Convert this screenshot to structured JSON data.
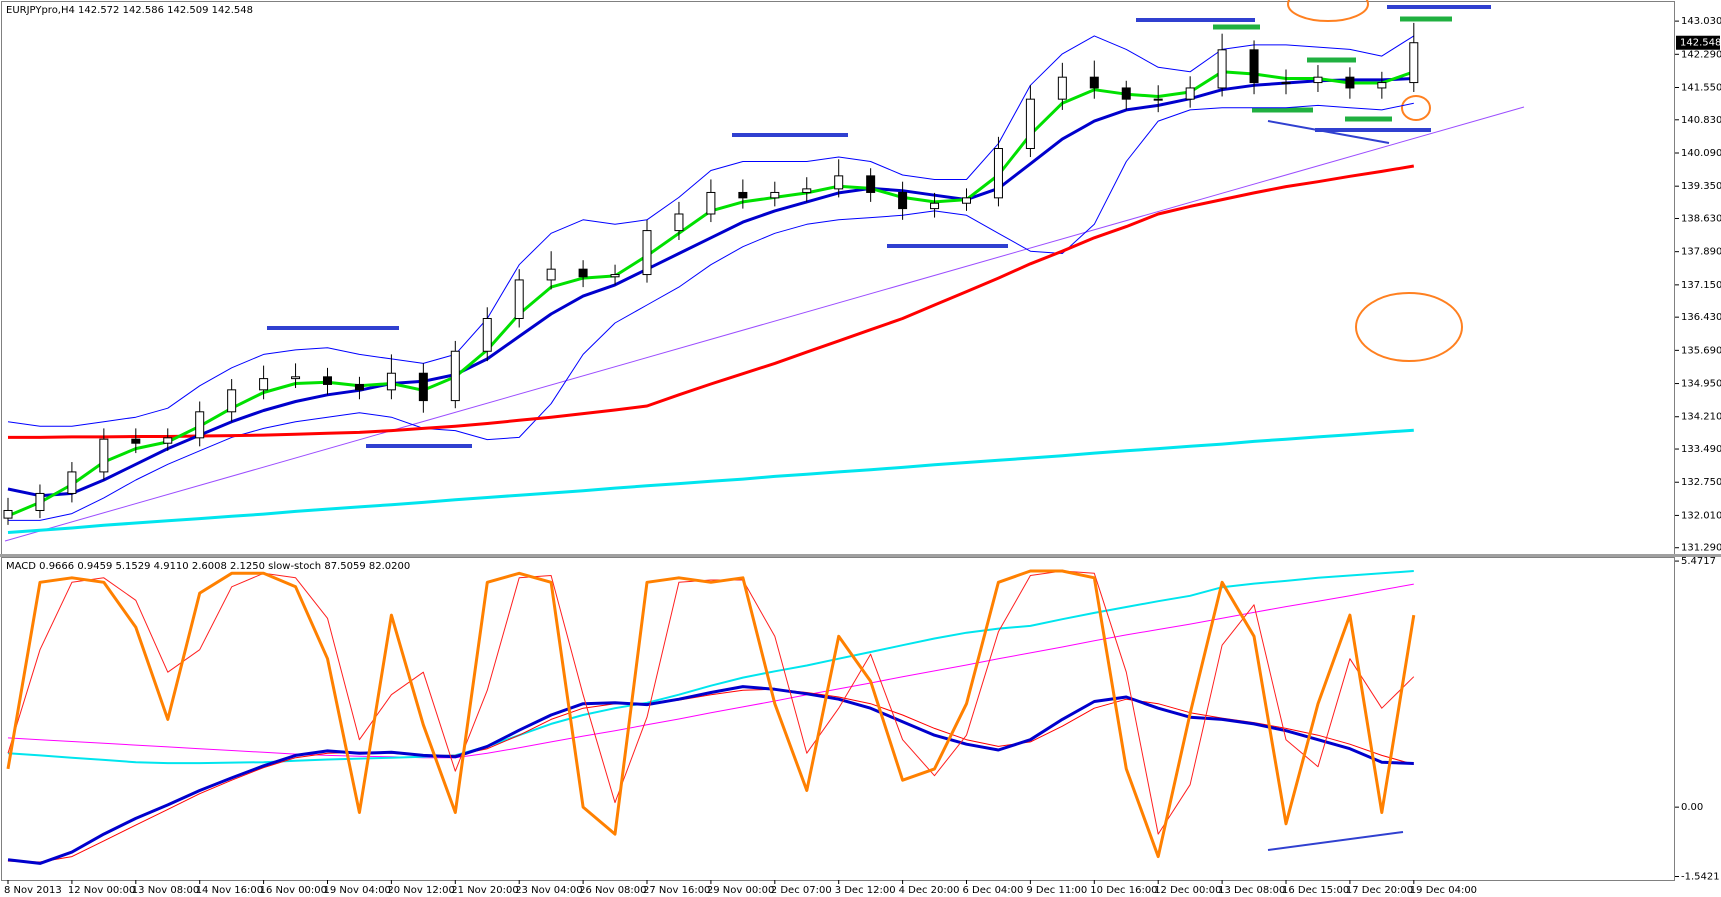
{
  "chart_data": [
    {
      "type": "candlestick",
      "title": "EURJPYpro,H4  142.572 142.586 142.509 142.548",
      "last_price": 142.548,
      "categories": [
        "8 Nov 2013",
        null,
        "12 Nov 00:00",
        null,
        "13 Nov 08:00",
        null,
        "14 Nov 16:00",
        null,
        "16 Nov 00:00",
        null,
        "19 Nov 04:00",
        null,
        "20 Nov 12:00",
        null,
        "21 Nov 20:00",
        null,
        "23 Nov 04:00",
        null,
        "26 Nov 08:00",
        null,
        "27 Nov 16:00",
        null,
        "29 Nov 00:00",
        null,
        "2 Dec 07:00",
        null,
        "3 Dec 12:00",
        null,
        "4 Dec 20:00",
        null,
        "6 Dec 04:00",
        null,
        "9 Dec 11:00",
        null,
        "10 Dec 16:00",
        null,
        "12 Dec 00:00",
        null,
        "13 Dec 08:00",
        null,
        "16 Dec 15:00",
        null,
        "17 Dec 20:00",
        null,
        "19 Dec 04:00"
      ],
      "open": [
        131.95,
        132.12,
        132.5,
        132.98,
        133.71,
        133.62,
        133.74,
        134.32,
        134.81,
        135.06,
        135.1,
        134.93,
        134.81,
        135.18,
        134.57,
        135.67,
        136.4,
        137.26,
        137.5,
        137.33,
        137.38,
        138.36,
        138.73,
        139.21,
        139.09,
        139.21,
        139.29,
        139.58,
        139.21,
        138.85,
        138.97,
        139.09,
        140.19,
        141.29,
        141.78,
        141.54,
        141.29,
        141.29,
        141.54,
        142.39,
        141.66,
        141.66,
        141.78,
        141.54,
        141.66
      ],
      "high": [
        132.4,
        132.7,
        133.2,
        133.95,
        133.95,
        133.95,
        134.55,
        135.05,
        135.35,
        135.4,
        135.3,
        135.1,
        135.6,
        135.4,
        135.9,
        136.65,
        137.5,
        137.9,
        137.7,
        137.6,
        138.6,
        139.0,
        139.5,
        139.5,
        139.45,
        139.55,
        139.95,
        139.75,
        139.45,
        139.2,
        139.3,
        140.45,
        141.6,
        142.1,
        142.15,
        141.7,
        141.6,
        141.8,
        142.75,
        142.6,
        141.95,
        142.05,
        142.0,
        141.9,
        142.99
      ],
      "low": [
        131.8,
        131.95,
        132.3,
        132.8,
        133.4,
        133.45,
        133.55,
        134.1,
        134.6,
        134.85,
        134.7,
        134.6,
        134.6,
        134.3,
        134.4,
        135.45,
        136.2,
        137.05,
        137.1,
        137.15,
        137.2,
        138.15,
        138.55,
        138.85,
        138.9,
        139.0,
        139.1,
        139.0,
        138.6,
        138.65,
        138.8,
        138.9,
        140.0,
        141.05,
        141.3,
        141.05,
        141.0,
        141.1,
        141.35,
        141.4,
        141.4,
        141.45,
        141.3,
        141.3,
        141.45
      ],
      "close": [
        132.12,
        132.5,
        132.98,
        133.71,
        133.62,
        133.74,
        134.32,
        134.81,
        135.06,
        135.1,
        134.93,
        134.81,
        135.18,
        134.57,
        135.67,
        136.4,
        137.26,
        137.5,
        137.33,
        137.38,
        138.36,
        138.73,
        139.21,
        139.09,
        139.21,
        139.29,
        139.58,
        139.21,
        138.85,
        138.97,
        139.09,
        140.19,
        141.29,
        141.78,
        141.54,
        141.29,
        141.29,
        141.54,
        142.39,
        141.66,
        141.66,
        141.78,
        141.54,
        141.66,
        142.548
      ],
      "series": [
        {
          "color": "#0000ff",
          "width": 1,
          "values": [
            134.1,
            134.0,
            134.0,
            134.1,
            134.2,
            134.4,
            134.9,
            135.3,
            135.6,
            135.7,
            135.75,
            135.6,
            135.5,
            135.4,
            135.6,
            136.4,
            137.6,
            138.3,
            138.6,
            138.5,
            138.6,
            139.1,
            139.7,
            139.9,
            139.9,
            139.9,
            140.0,
            139.9,
            139.6,
            139.5,
            139.5,
            140.3,
            141.6,
            142.3,
            142.7,
            142.4,
            142.0,
            141.9,
            142.4,
            142.5,
            142.5,
            142.45,
            142.4,
            142.25,
            142.7
          ]
        },
        {
          "color": "#0000ff",
          "width": 1,
          "values": [
            131.9,
            131.9,
            132.05,
            132.4,
            132.8,
            133.15,
            133.45,
            133.75,
            133.95,
            134.1,
            134.2,
            134.3,
            134.2,
            133.95,
            133.9,
            133.7,
            133.75,
            134.5,
            135.6,
            136.3,
            136.7,
            137.1,
            137.6,
            138.0,
            138.3,
            138.5,
            138.6,
            138.65,
            138.7,
            138.8,
            138.7,
            138.3,
            137.9,
            137.85,
            138.5,
            139.9,
            140.8,
            141.05,
            141.1,
            141.1,
            141.1,
            141.15,
            141.1,
            141.05,
            141.2
          ]
        },
        {
          "color": "#ff0000",
          "width": 3,
          "values": [
            133.75,
            133.75,
            133.76,
            133.76,
            133.77,
            133.77,
            133.78,
            133.79,
            133.8,
            133.82,
            133.84,
            133.86,
            133.9,
            133.95,
            134.0,
            134.06,
            134.13,
            134.2,
            134.28,
            134.36,
            134.45,
            134.7,
            134.94,
            135.17,
            135.4,
            135.65,
            135.9,
            136.15,
            136.4,
            136.7,
            137.0,
            137.3,
            137.62,
            137.9,
            138.2,
            138.45,
            138.73,
            138.9,
            139.05,
            139.2,
            139.34,
            139.45,
            139.57,
            139.68,
            139.8
          ]
        },
        {
          "color": "#00e5ee",
          "width": 3,
          "values": [
            131.63,
            131.68,
            131.73,
            131.79,
            131.84,
            131.89,
            131.94,
            131.99,
            132.04,
            132.1,
            132.15,
            132.2,
            132.25,
            132.3,
            132.36,
            132.41,
            132.46,
            132.51,
            132.56,
            132.62,
            132.67,
            132.72,
            132.77,
            132.82,
            132.88,
            132.93,
            132.98,
            133.03,
            133.08,
            133.14,
            133.19,
            133.24,
            133.29,
            133.34,
            133.4,
            133.45,
            133.5,
            133.55,
            133.6,
            133.66,
            133.71,
            133.76,
            133.81,
            133.86,
            133.91
          ]
        },
        {
          "color": "#0000cc",
          "width": 3,
          "values": [
            132.6,
            132.45,
            132.5,
            132.8,
            133.15,
            133.5,
            133.8,
            134.1,
            134.35,
            134.55,
            134.7,
            134.8,
            134.95,
            135.0,
            135.15,
            135.5,
            136.0,
            136.5,
            136.9,
            137.15,
            137.5,
            137.85,
            138.2,
            138.55,
            138.8,
            139.0,
            139.2,
            139.3,
            139.25,
            139.15,
            139.05,
            139.3,
            139.85,
            140.4,
            140.8,
            141.05,
            141.15,
            141.3,
            141.5,
            141.6,
            141.65,
            141.7,
            141.72,
            141.72,
            141.75
          ]
        },
        {
          "color": "#00e000",
          "width": 3,
          "values": [
            132.0,
            132.3,
            132.7,
            133.2,
            133.5,
            133.65,
            134.0,
            134.4,
            134.75,
            134.95,
            134.98,
            134.9,
            134.95,
            134.8,
            135.1,
            135.7,
            136.5,
            137.1,
            137.3,
            137.35,
            137.8,
            138.3,
            138.8,
            139.0,
            139.1,
            139.2,
            139.35,
            139.3,
            139.1,
            139.0,
            139.05,
            139.6,
            140.5,
            141.2,
            141.5,
            141.4,
            141.35,
            141.45,
            141.9,
            141.85,
            141.75,
            141.75,
            141.65,
            141.65,
            141.9
          ]
        }
      ],
      "ylim": [
        131.15,
        143.3
      ],
      "yticks": [
        {
          "value": 143.03,
          "label": "143.030"
        },
        {
          "value": 142.29,
          "label": "142.290"
        },
        {
          "value": 141.55,
          "label": "141.550"
        },
        {
          "value": 140.83,
          "label": "140.830"
        },
        {
          "value": 140.09,
          "label": "140.090"
        },
        {
          "value": 139.35,
          "label": "139.350"
        },
        {
          "value": 138.63,
          "label": "138.630"
        },
        {
          "value": 137.89,
          "label": "137.890"
        },
        {
          "value": 137.15,
          "label": "137.150"
        },
        {
          "value": 136.43,
          "label": "136.430"
        },
        {
          "value": 135.69,
          "label": "135.690"
        },
        {
          "value": 134.95,
          "label": "134.950"
        },
        {
          "value": 134.21,
          "label": "134.210"
        },
        {
          "value": 133.49,
          "label": "133.490"
        },
        {
          "value": 132.75,
          "label": "132.750"
        },
        {
          "value": 132.01,
          "label": "132.010"
        },
        {
          "value": 131.29,
          "label": "131.290"
        }
      ]
    },
    {
      "type": "line",
      "title": "MACD 0.9666 0.9459 5.1529 4.9110 2.6008 2.1250 slow-stoch 87.5059 82.0200",
      "series": [
        {
          "color": "#ff00ff",
          "width": 1,
          "values": [
            1.54,
            1.5,
            1.46,
            1.42,
            1.38,
            1.34,
            1.3,
            1.26,
            1.22,
            1.18,
            1.15,
            1.13,
            1.12,
            1.1,
            1.1,
            1.2,
            1.32,
            1.45,
            1.58,
            1.7,
            1.83,
            1.96,
            2.1,
            2.23,
            2.36,
            2.5,
            2.63,
            2.76,
            2.9,
            3.03,
            3.16,
            3.3,
            3.43,
            3.56,
            3.7,
            3.83,
            3.95,
            4.07,
            4.2,
            4.33,
            4.46,
            4.58,
            4.7,
            4.83,
            4.96
          ]
        },
        {
          "color": "#00e5ee",
          "width": 2,
          "values": [
            1.2,
            1.15,
            1.1,
            1.05,
            1.0,
            0.98,
            0.98,
            0.99,
            1.0,
            1.03,
            1.06,
            1.08,
            1.1,
            1.12,
            1.15,
            1.35,
            1.6,
            1.85,
            2.05,
            2.2,
            2.32,
            2.5,
            2.7,
            2.88,
            3.02,
            3.15,
            3.3,
            3.45,
            3.6,
            3.75,
            3.88,
            3.97,
            4.03,
            4.18,
            4.32,
            4.45,
            4.58,
            4.7,
            4.89,
            4.97,
            5.03,
            5.1,
            5.15,
            5.2,
            5.25
          ]
        },
        {
          "color": "#ff0000",
          "width": 1,
          "values": [
            -1.2,
            -1.22,
            -1.1,
            -0.75,
            -0.4,
            -0.05,
            0.3,
            0.6,
            0.88,
            1.1,
            1.2,
            1.22,
            1.2,
            1.15,
            1.15,
            1.3,
            1.6,
            1.95,
            2.2,
            2.3,
            2.3,
            2.38,
            2.5,
            2.6,
            2.62,
            2.55,
            2.45,
            2.3,
            2.05,
            1.75,
            1.5,
            1.35,
            1.45,
            1.8,
            2.2,
            2.4,
            2.3,
            2.1,
            1.98,
            1.88,
            1.75,
            1.6,
            1.4,
            1.15,
            0.95
          ]
        },
        {
          "color": "#0000cc",
          "width": 3,
          "values": [
            -1.17,
            -1.25,
            -1.0,
            -0.6,
            -0.25,
            0.05,
            0.37,
            0.65,
            0.92,
            1.15,
            1.25,
            1.2,
            1.22,
            1.15,
            1.12,
            1.35,
            1.71,
            2.05,
            2.3,
            2.32,
            2.28,
            2.4,
            2.55,
            2.68,
            2.62,
            2.52,
            2.4,
            2.2,
            1.9,
            1.6,
            1.4,
            1.27,
            1.5,
            1.95,
            2.35,
            2.45,
            2.2,
            2.0,
            1.95,
            1.85,
            1.7,
            1.5,
            1.3,
            1.0,
            0.97
          ]
        },
        {
          "color": "#ff2020",
          "width": 1,
          "values": [
            1.2,
            3.5,
            5.0,
            5.1,
            4.6,
            3.0,
            3.5,
            4.9,
            5.2,
            5.1,
            4.2,
            1.5,
            2.5,
            3.0,
            0.8,
            2.6,
            5.1,
            5.15,
            2.5,
            0.1,
            2.0,
            5.0,
            5.05,
            5.05,
            3.8,
            1.2,
            2.2,
            3.4,
            1.5,
            0.7,
            1.6,
            3.9,
            5.15,
            5.25,
            5.2,
            3.0,
            -0.6,
            0.5,
            3.6,
            4.5,
            1.5,
            0.9,
            3.3,
            2.2,
            2.9
          ]
        },
        {
          "color": "#ff8000",
          "width": 3,
          "values": [
            0.85,
            5.0,
            5.1,
            5.0,
            4.0,
            1.95,
            4.76,
            5.2,
            5.2,
            4.9,
            3.3,
            -0.12,
            4.27,
            1.83,
            -0.12,
            5.0,
            5.2,
            5.0,
            0.0,
            -0.6,
            5.0,
            5.1,
            5.0,
            5.1,
            2.3,
            0.37,
            3.8,
            2.8,
            0.6,
            0.85,
            2.3,
            5.0,
            5.25,
            5.25,
            5.1,
            0.85,
            -1.1,
            2.08,
            5.0,
            3.8,
            -0.37,
            2.3,
            4.27,
            -0.12,
            4.27
          ]
        }
      ],
      "ylim": [
        -1.62,
        5.54
      ],
      "yticks": [
        5.4717,
        {
          "value": 0,
          "label": "0.00"
        },
        -1.5421
      ]
    }
  ]
}
